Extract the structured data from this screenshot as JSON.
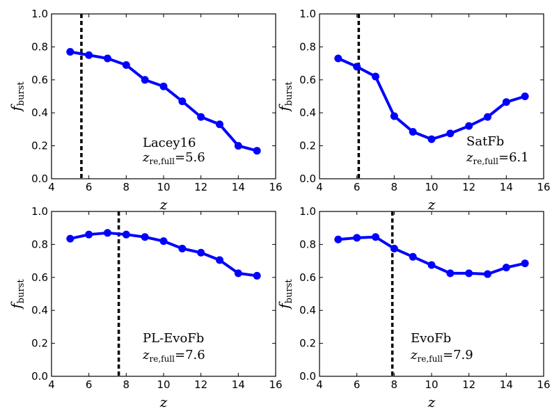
{
  "chart_data": [
    {
      "type": "line",
      "xlabel": "z",
      "ylabel": "f",
      "ylabel_sub": "burst",
      "xlim": [
        4,
        16
      ],
      "ylim": [
        0.0,
        1.0
      ],
      "xticks": [
        "4",
        "6",
        "8",
        "10",
        "12",
        "14",
        "16"
      ],
      "yticks": [
        "0.0",
        "0.2",
        "0.4",
        "0.6",
        "0.8",
        "1.0"
      ],
      "series": [
        {
          "color": "#0000ff",
          "x": [
            5,
            6,
            7,
            8,
            9,
            10,
            11,
            12,
            13,
            14,
            15
          ],
          "y": [
            0.77,
            0.75,
            0.73,
            0.69,
            0.6,
            0.56,
            0.47,
            0.375,
            0.33,
            0.2,
            0.17
          ]
        }
      ],
      "vline": {
        "x": 5.6,
        "style": "dashed",
        "color": "#000000"
      },
      "annotation": {
        "model": "Lacey16",
        "z_main": "z",
        "z_sub": "re,full",
        "value": "=5.6"
      }
    },
    {
      "type": "line",
      "xlabel": "z",
      "ylabel": "f",
      "ylabel_sub": "burst",
      "xlim": [
        4,
        16
      ],
      "ylim": [
        0.0,
        1.0
      ],
      "xticks": [
        "4",
        "6",
        "8",
        "10",
        "12",
        "14",
        "16"
      ],
      "yticks": [
        "0.0",
        "0.2",
        "0.4",
        "0.6",
        "0.8",
        "1.0"
      ],
      "series": [
        {
          "color": "#0000ff",
          "x": [
            5,
            6,
            7,
            8,
            9,
            10,
            11,
            12,
            13,
            14,
            15
          ],
          "y": [
            0.73,
            0.68,
            0.62,
            0.38,
            0.285,
            0.24,
            0.275,
            0.32,
            0.375,
            0.465,
            0.5
          ]
        }
      ],
      "vline": {
        "x": 6.1,
        "style": "dashed",
        "color": "#000000"
      },
      "annotation": {
        "model": "SatFb",
        "z_main": "z",
        "z_sub": "re,full",
        "value": "=6.1"
      }
    },
    {
      "type": "line",
      "xlabel": "z",
      "ylabel": "f",
      "ylabel_sub": "burst",
      "xlim": [
        4,
        16
      ],
      "ylim": [
        0.0,
        1.0
      ],
      "xticks": [
        "4",
        "6",
        "8",
        "10",
        "12",
        "14",
        "16"
      ],
      "yticks": [
        "0.0",
        "0.2",
        "0.4",
        "0.6",
        "0.8",
        "1.0"
      ],
      "series": [
        {
          "color": "#0000ff",
          "x": [
            5,
            6,
            7,
            8,
            9,
            10,
            11,
            12,
            13,
            14,
            15
          ],
          "y": [
            0.835,
            0.86,
            0.87,
            0.86,
            0.845,
            0.82,
            0.775,
            0.75,
            0.705,
            0.625,
            0.61
          ]
        }
      ],
      "vline": {
        "x": 7.6,
        "style": "dashed",
        "color": "#000000"
      },
      "annotation": {
        "model": "PL-EvoFb",
        "z_main": "z",
        "z_sub": "re,full",
        "value": "=7.6"
      }
    },
    {
      "type": "line",
      "xlabel": "z",
      "ylabel": "f",
      "ylabel_sub": "burst",
      "xlim": [
        4,
        16
      ],
      "ylim": [
        0.0,
        1.0
      ],
      "xticks": [
        "4",
        "6",
        "8",
        "10",
        "12",
        "14",
        "16"
      ],
      "yticks": [
        "0.0",
        "0.2",
        "0.4",
        "0.6",
        "0.8",
        "1.0"
      ],
      "series": [
        {
          "color": "#0000ff",
          "x": [
            5,
            6,
            7,
            8,
            9,
            10,
            11,
            12,
            13,
            14,
            15
          ],
          "y": [
            0.83,
            0.84,
            0.845,
            0.775,
            0.725,
            0.675,
            0.625,
            0.625,
            0.62,
            0.66,
            0.685
          ]
        }
      ],
      "vline": {
        "x": 7.9,
        "style": "dashed",
        "color": "#000000"
      },
      "annotation": {
        "model": "EvoFb",
        "z_main": "z",
        "z_sub": "re,full",
        "value": "=7.9"
      }
    }
  ]
}
